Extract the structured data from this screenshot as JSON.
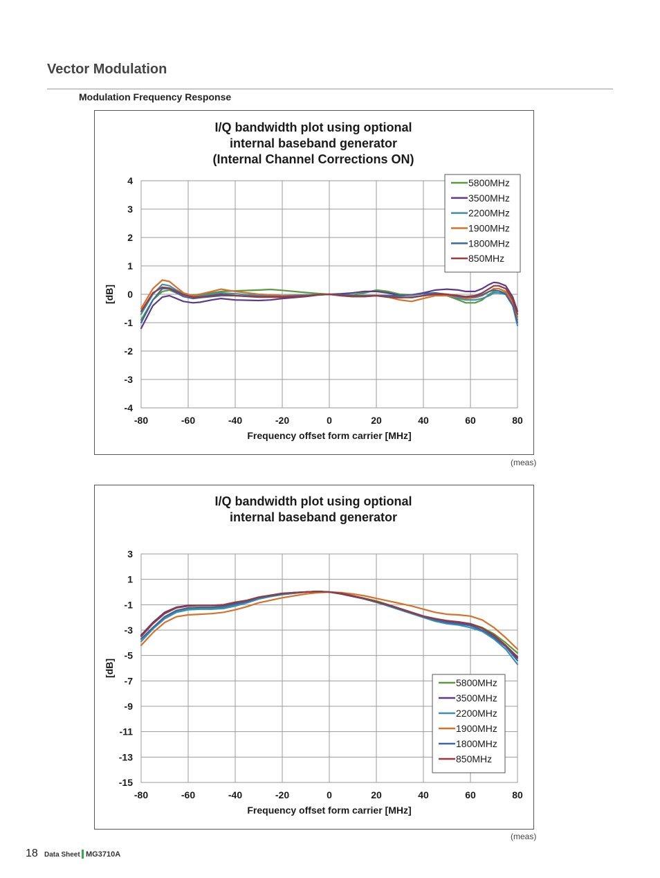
{
  "header": {
    "section_title": "Vector Modulation",
    "subsection_title": "Modulation Frequency Response"
  },
  "chart_data": [
    {
      "type": "line",
      "title": [
        "I/Q bandwidth plot using optional",
        "internal baseband generator",
        "(Internal Channel Corrections ON)"
      ],
      "xlabel": "Frequency offset form carrier [MHz]",
      "ylabel": "[dB]",
      "xlim": [
        -80,
        80
      ],
      "ylim": [
        -4,
        4
      ],
      "xticks": [
        -80,
        -60,
        -40,
        -20,
        0,
        20,
        40,
        60,
        80
      ],
      "yticks": [
        -4,
        -3,
        -2,
        -1,
        0,
        1,
        2,
        3,
        4
      ],
      "grid": true,
      "legend_position": "top-right",
      "x": [
        -80,
        -75,
        -71,
        -68,
        -65,
        -62,
        -58,
        -55,
        -50,
        -46,
        -40,
        -30,
        -25,
        -20,
        -10,
        -5,
        0,
        5,
        10,
        15,
        20,
        25,
        30,
        35,
        40,
        45,
        50,
        55,
        58,
        62,
        65,
        68,
        70,
        72,
        75,
        78,
        80
      ],
      "series": [
        {
          "name": "5800MHz",
          "color": "#5a9a3a",
          "values": [
            -0.9,
            -0.2,
            0.1,
            0.15,
            0.05,
            -0.02,
            -0.03,
            0.0,
            0.05,
            0.1,
            0.12,
            0.15,
            0.17,
            0.14,
            0.06,
            0.03,
            0.0,
            -0.02,
            -0.02,
            0.05,
            0.15,
            0.1,
            0.0,
            -0.02,
            0.02,
            0.05,
            -0.05,
            -0.2,
            -0.3,
            -0.3,
            -0.2,
            0.0,
            0.1,
            0.12,
            0.05,
            -0.3,
            -0.8
          ]
        },
        {
          "name": "3500MHz",
          "color": "#5a3a8a",
          "values": [
            -1.2,
            -0.4,
            -0.1,
            -0.05,
            -0.15,
            -0.25,
            -0.3,
            -0.28,
            -0.2,
            -0.15,
            -0.2,
            -0.22,
            -0.2,
            -0.15,
            -0.08,
            -0.03,
            0.0,
            0.02,
            0.05,
            0.1,
            0.1,
            0.05,
            -0.05,
            -0.02,
            0.05,
            0.15,
            0.18,
            0.15,
            0.1,
            0.1,
            0.2,
            0.35,
            0.42,
            0.4,
            0.3,
            -0.1,
            -0.6
          ]
        },
        {
          "name": "2200MHz",
          "color": "#3a90b0",
          "values": [
            -0.7,
            0.0,
            0.35,
            0.3,
            0.15,
            0.02,
            -0.05,
            -0.05,
            0.0,
            0.05,
            0.02,
            -0.05,
            -0.05,
            -0.05,
            -0.03,
            -0.01,
            0.0,
            -0.02,
            -0.05,
            -0.05,
            -0.05,
            -0.08,
            -0.1,
            -0.12,
            -0.05,
            0.0,
            -0.05,
            -0.15,
            -0.2,
            -0.2,
            -0.15,
            -0.05,
            0.05,
            0.05,
            0.0,
            -0.4,
            -1.1
          ]
        },
        {
          "name": "1900MHz",
          "color": "#d8702a",
          "values": [
            -0.5,
            0.2,
            0.5,
            0.45,
            0.25,
            0.05,
            -0.05,
            0.0,
            0.1,
            0.18,
            0.1,
            0.0,
            -0.02,
            -0.05,
            -0.05,
            -0.02,
            0.0,
            -0.05,
            -0.08,
            -0.08,
            -0.05,
            -0.1,
            -0.2,
            -0.25,
            -0.15,
            -0.05,
            -0.05,
            -0.1,
            -0.15,
            -0.12,
            -0.05,
            0.1,
            0.2,
            0.2,
            0.1,
            -0.3,
            -0.9
          ]
        },
        {
          "name": "1800MHz",
          "color": "#3a66a8",
          "values": [
            -1.0,
            -0.2,
            0.2,
            0.2,
            0.05,
            -0.08,
            -0.15,
            -0.12,
            -0.08,
            -0.05,
            -0.05,
            -0.08,
            -0.08,
            -0.08,
            -0.05,
            -0.02,
            0.0,
            -0.02,
            -0.05,
            -0.05,
            -0.05,
            -0.05,
            -0.05,
            -0.03,
            0.02,
            0.05,
            0.0,
            -0.08,
            -0.1,
            -0.08,
            -0.02,
            0.1,
            0.15,
            0.12,
            0.0,
            -0.4,
            -1.0
          ]
        },
        {
          "name": "850MHz",
          "color": "#983a3a",
          "values": [
            -0.6,
            0.05,
            0.25,
            0.22,
            0.1,
            -0.02,
            -0.1,
            -0.1,
            -0.05,
            0.0,
            -0.05,
            -0.1,
            -0.1,
            -0.1,
            -0.06,
            -0.02,
            0.0,
            -0.05,
            -0.08,
            -0.08,
            -0.05,
            -0.1,
            -0.12,
            -0.1,
            -0.05,
            0.0,
            0.0,
            -0.05,
            -0.08,
            -0.05,
            0.05,
            0.2,
            0.3,
            0.3,
            0.2,
            -0.2,
            -0.7
          ]
        }
      ]
    },
    {
      "type": "line",
      "title": [
        "I/Q bandwidth plot using optional",
        "internal baseband generator"
      ],
      "xlabel": "Frequency offset form carrier [MHz]",
      "ylabel": "[dB]",
      "xlim": [
        -80,
        80
      ],
      "ylim": [
        -15,
        3
      ],
      "xticks": [
        -80,
        -60,
        -40,
        -20,
        0,
        20,
        40,
        60,
        80
      ],
      "yticks": [
        -15,
        -13,
        -11,
        -9,
        -7,
        -5,
        -3,
        -1,
        1,
        3
      ],
      "grid": true,
      "legend_position": "bottom-right",
      "x": [
        -80,
        -75,
        -70,
        -65,
        -60,
        -55,
        -50,
        -45,
        -40,
        -35,
        -30,
        -25,
        -20,
        -15,
        -10,
        -5,
        0,
        5,
        10,
        15,
        20,
        25,
        30,
        35,
        40,
        45,
        50,
        55,
        60,
        65,
        70,
        75,
        80
      ],
      "series": [
        {
          "name": "5800MHz",
          "color": "#5a9a3a",
          "values": [
            -3.7,
            -2.8,
            -2.0,
            -1.5,
            -1.3,
            -1.3,
            -1.3,
            -1.2,
            -1.0,
            -0.8,
            -0.5,
            -0.35,
            -0.2,
            -0.1,
            0.0,
            0.05,
            0.0,
            -0.1,
            -0.3,
            -0.5,
            -0.7,
            -1.0,
            -1.3,
            -1.6,
            -1.9,
            -2.1,
            -2.3,
            -2.4,
            -2.5,
            -2.8,
            -3.3,
            -4.0,
            -4.8
          ]
        },
        {
          "name": "3500MHz",
          "color": "#5a3a8a",
          "values": [
            -3.4,
            -2.4,
            -1.6,
            -1.2,
            -1.05,
            -1.05,
            -1.05,
            -1.05,
            -0.85,
            -0.7,
            -0.45,
            -0.3,
            -0.15,
            -0.05,
            0.0,
            0.05,
            0.0,
            -0.15,
            -0.35,
            -0.55,
            -0.8,
            -1.05,
            -1.35,
            -1.65,
            -1.95,
            -2.15,
            -2.3,
            -2.4,
            -2.6,
            -3.0,
            -3.6,
            -4.3,
            -5.2
          ]
        },
        {
          "name": "2200MHz",
          "color": "#3a90b0",
          "values": [
            -3.9,
            -2.9,
            -2.1,
            -1.6,
            -1.4,
            -1.35,
            -1.35,
            -1.3,
            -1.1,
            -0.85,
            -0.55,
            -0.35,
            -0.2,
            -0.1,
            0.0,
            0.05,
            0.0,
            -0.1,
            -0.3,
            -0.55,
            -0.8,
            -1.1,
            -1.4,
            -1.7,
            -2.0,
            -2.3,
            -2.5,
            -2.6,
            -2.8,
            -3.1,
            -3.7,
            -4.5,
            -5.7
          ]
        },
        {
          "name": "1900MHz",
          "color": "#d8702a",
          "values": [
            -4.2,
            -3.2,
            -2.4,
            -1.95,
            -1.8,
            -1.75,
            -1.7,
            -1.6,
            -1.4,
            -1.15,
            -0.85,
            -0.65,
            -0.45,
            -0.3,
            -0.15,
            -0.05,
            0.0,
            -0.05,
            -0.15,
            -0.3,
            -0.5,
            -0.7,
            -0.9,
            -1.1,
            -1.35,
            -1.6,
            -1.75,
            -1.8,
            -1.9,
            -2.2,
            -2.8,
            -3.6,
            -4.5
          ]
        },
        {
          "name": "1800MHz",
          "color": "#3a66a8",
          "values": [
            -3.7,
            -2.8,
            -1.95,
            -1.45,
            -1.25,
            -1.2,
            -1.2,
            -1.15,
            -0.95,
            -0.75,
            -0.45,
            -0.3,
            -0.15,
            -0.05,
            0.0,
            0.05,
            0.0,
            -0.1,
            -0.3,
            -0.55,
            -0.8,
            -1.05,
            -1.35,
            -1.65,
            -1.95,
            -2.2,
            -2.4,
            -2.5,
            -2.65,
            -3.0,
            -3.5,
            -4.3,
            -5.4
          ]
        },
        {
          "name": "850MHz",
          "color": "#983a3a",
          "values": [
            -3.5,
            -2.5,
            -1.7,
            -1.25,
            -1.1,
            -1.05,
            -1.05,
            -1.0,
            -0.8,
            -0.65,
            -0.4,
            -0.25,
            -0.1,
            -0.05,
            0.0,
            0.05,
            0.0,
            -0.1,
            -0.3,
            -0.5,
            -0.75,
            -1.0,
            -1.3,
            -1.6,
            -1.9,
            -2.1,
            -2.25,
            -2.35,
            -2.5,
            -2.85,
            -3.4,
            -4.2,
            -5.1
          ]
        }
      ]
    }
  ],
  "captions": {
    "chart1": "(meas)",
    "chart2": "(meas)"
  },
  "footer": {
    "page_number": "18",
    "doc_type": "Data Sheet",
    "model": "MG3710A"
  }
}
